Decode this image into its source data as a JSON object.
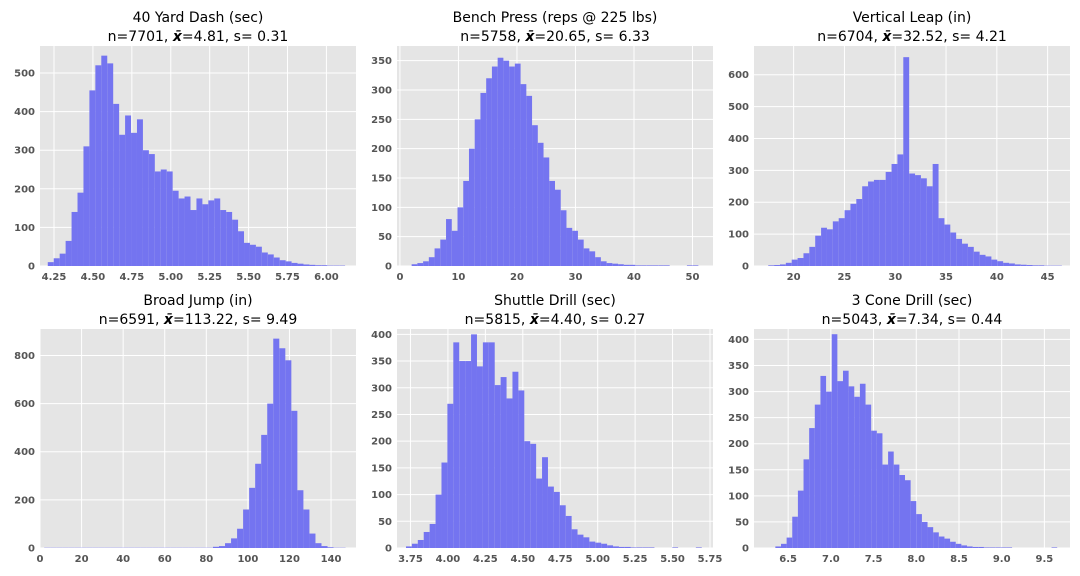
{
  "chart_data": [
    {
      "type": "bar",
      "title": "40 Yard Dash (sec)",
      "stats": {
        "n": "7701",
        "mean": "4.81",
        "s": "0.31"
      },
      "xlim": [
        4.16,
        6.19
      ],
      "ylim": [
        0,
        570
      ],
      "xticks": [
        "4.25",
        "4.50",
        "4.75",
        "5.00",
        "5.25",
        "5.50",
        "5.75",
        "6.00"
      ],
      "xtick_values": [
        4.25,
        4.5,
        4.75,
        5.0,
        5.25,
        5.5,
        5.75,
        6.0
      ],
      "yticks": [
        0,
        100,
        200,
        300,
        400,
        500
      ],
      "bin_start": 4.21,
      "bin_width": 0.0382,
      "values": [
        10,
        20,
        32,
        65,
        140,
        190,
        310,
        455,
        520,
        545,
        525,
        420,
        340,
        390,
        345,
        380,
        300,
        290,
        245,
        250,
        245,
        195,
        175,
        180,
        145,
        175,
        160,
        170,
        175,
        145,
        140,
        120,
        90,
        60,
        55,
        50,
        35,
        30,
        22,
        15,
        12,
        8,
        6,
        4,
        3,
        2,
        2,
        1,
        1,
        1
      ]
    },
    {
      "type": "bar",
      "title": "Bench Press (reps @ 225 lbs)",
      "stats": {
        "n": "5758",
        "mean": "20.65",
        "s": "6.33"
      },
      "xlim": [
        -0.5,
        53.5
      ],
      "ylim": [
        0,
        375
      ],
      "xticks": [
        "0",
        "10",
        "20",
        "30",
        "40",
        "50"
      ],
      "xtick_values": [
        0,
        10,
        20,
        30,
        40,
        50
      ],
      "yticks": [
        0,
        50,
        100,
        150,
        200,
        250,
        300,
        350
      ],
      "bin_start": 2,
      "bin_width": 0.98,
      "values": [
        3,
        5,
        8,
        15,
        30,
        45,
        80,
        60,
        100,
        145,
        200,
        250,
        295,
        320,
        340,
        355,
        350,
        340,
        345,
        310,
        290,
        240,
        210,
        185,
        145,
        130,
        95,
        65,
        60,
        45,
        30,
        25,
        15,
        8,
        5,
        4,
        3,
        2,
        2,
        1,
        1,
        1,
        1,
        1,
        1,
        0,
        0,
        0,
        1,
        1
      ]
    },
    {
      "type": "bar",
      "title": "Vertical Leap (in)",
      "stats": {
        "n": "6704",
        "mean": "32.52",
        "s": "4.21"
      },
      "xlim": [
        16.1,
        47.2
      ],
      "ylim": [
        0,
        690
      ],
      "xticks": [
        "20",
        "25",
        "30",
        "35",
        "40",
        "45"
      ],
      "xtick_values": [
        20,
        25,
        30,
        35,
        40,
        45
      ],
      "yticks": [
        0,
        100,
        200,
        300,
        400,
        500,
        600
      ],
      "bin_start": 17.5,
      "bin_width": 0.578,
      "values": [
        2,
        3,
        5,
        10,
        20,
        25,
        40,
        60,
        95,
        120,
        115,
        140,
        150,
        175,
        195,
        210,
        250,
        265,
        270,
        270,
        295,
        320,
        350,
        655,
        290,
        285,
        275,
        250,
        320,
        150,
        130,
        105,
        85,
        70,
        60,
        45,
        35,
        30,
        20,
        15,
        10,
        8,
        5,
        4,
        3,
        2,
        2,
        1,
        1,
        1
      ]
    },
    {
      "type": "bar",
      "title": "Broad Jump (in)",
      "stats": {
        "n": "6591",
        "mean": "113.22",
        "s": "9.49"
      },
      "xlim": [
        0,
        152
      ],
      "ylim": [
        0,
        910
      ],
      "xticks": [
        "0",
        "20",
        "40",
        "60",
        "80",
        "100",
        "120",
        "140"
      ],
      "xtick_values": [
        0,
        20,
        40,
        60,
        80,
        100,
        120,
        140
      ],
      "yticks": [
        0,
        200,
        400,
        600,
        800
      ],
      "bin_start": 2,
      "bin_width": 2.9,
      "values": [
        1,
        1,
        1,
        1,
        1,
        1,
        1,
        1,
        1,
        1,
        1,
        1,
        1,
        1,
        1,
        1,
        1,
        1,
        1,
        1,
        1,
        1,
        1,
        1,
        1,
        1,
        1,
        1,
        5,
        8,
        20,
        40,
        80,
        160,
        250,
        350,
        470,
        600,
        870,
        830,
        780,
        570,
        240,
        160,
        60,
        20,
        8,
        3,
        1,
        1
      ]
    },
    {
      "type": "bar",
      "title": "Shuttle Drill (sec)",
      "stats": {
        "n": "5815",
        "mean": "4.40",
        "s": "0.27"
      },
      "xlim": [
        3.66,
        5.77
      ],
      "ylim": [
        0,
        410
      ],
      "xticks": [
        "3.75",
        "4.00",
        "4.25",
        "4.50",
        "4.75",
        "5.00",
        "5.25",
        "5.50",
        "5.75"
      ],
      "xtick_values": [
        3.75,
        4.0,
        4.25,
        4.5,
        4.75,
        5.0,
        5.25,
        5.5,
        5.75
      ],
      "yticks": [
        0,
        50,
        100,
        150,
        200,
        250,
        300,
        350,
        400
      ],
      "bin_start": 3.72,
      "bin_width": 0.0395,
      "values": [
        3,
        8,
        15,
        30,
        45,
        100,
        160,
        270,
        385,
        350,
        350,
        400,
        340,
        385,
        385,
        305,
        320,
        280,
        330,
        295,
        200,
        195,
        130,
        170,
        115,
        105,
        80,
        60,
        35,
        25,
        20,
        12,
        10,
        8,
        5,
        3,
        2,
        2,
        1,
        1,
        1,
        1,
        0,
        0,
        0,
        1,
        0,
        0,
        0,
        1
      ]
    },
    {
      "type": "bar",
      "title": "3 Cone Drill (sec)",
      "stats": {
        "n": "5043",
        "mean": "7.34",
        "s": "0.44"
      },
      "xlim": [
        6.1,
        9.8
      ],
      "ylim": [
        0,
        420
      ],
      "xticks": [
        "6.5",
        "7.0",
        "7.5",
        "8.0",
        "8.5",
        "9.0",
        "9.5"
      ],
      "xtick_values": [
        6.5,
        7.0,
        7.5,
        8.0,
        8.5,
        9.0,
        9.5
      ],
      "yticks": [
        0,
        50,
        100,
        150,
        200,
        250,
        300,
        350,
        400
      ],
      "bin_start": 6.35,
      "bin_width": 0.066,
      "values": [
        3,
        8,
        20,
        60,
        110,
        170,
        230,
        275,
        330,
        300,
        410,
        320,
        340,
        310,
        290,
        315,
        275,
        225,
        220,
        160,
        185,
        160,
        140,
        130,
        90,
        65,
        50,
        40,
        30,
        22,
        18,
        12,
        8,
        5,
        3,
        2,
        2,
        1,
        1,
        1,
        1,
        1,
        0,
        0,
        0,
        0,
        0,
        0,
        0,
        1
      ]
    }
  ],
  "colors": {
    "bar": "#7474f0",
    "panel_bg": "#e5e5e5",
    "grid": "#ffffff",
    "tick_text": "#555555"
  }
}
